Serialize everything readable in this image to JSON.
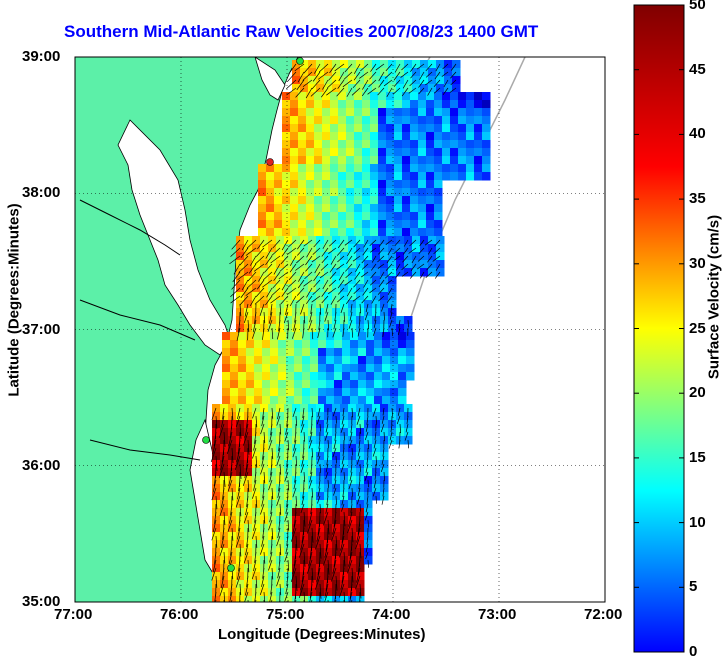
{
  "chart_data": {
    "type": "heatmap",
    "title": "Southern Mid-Atlantic Raw Velocities 2007/08/23 1400 GMT",
    "xlabel": "Longitude (Degrees:Minutes)",
    "ylabel": "Latitude (Degrees:Minutes)",
    "colorbar_label": "Surface Velocity (cm/s)",
    "x_ticks": [
      "77:00",
      "76:00",
      "75:00",
      "74:00",
      "73:00",
      "72:00"
    ],
    "y_ticks": [
      "39:00",
      "38:00",
      "37:00",
      "36:00",
      "35:00"
    ],
    "colorbar_ticks": [
      "50",
      "45",
      "40",
      "35",
      "30",
      "25",
      "20",
      "15",
      "10",
      "5",
      "0"
    ],
    "xlim": [
      -77,
      -72
    ],
    "ylim": [
      35,
      39
    ],
    "clim": [
      0,
      50
    ],
    "grid": true,
    "colormap": "jet",
    "colors": {
      "title": "#0000ff",
      "land": "#5cf0a8",
      "station": "#22dd44",
      "station_alert": "#dd2222"
    }
  }
}
